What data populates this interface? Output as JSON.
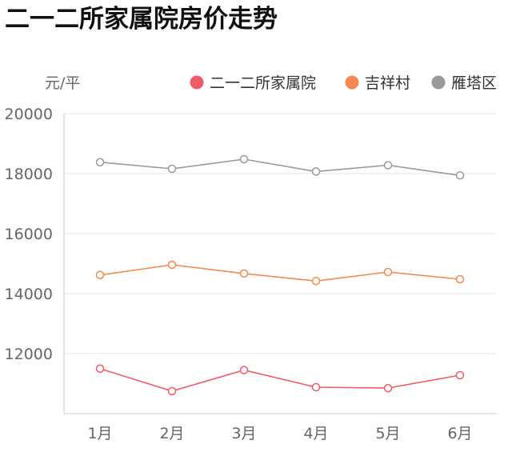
{
  "title": "二一二所家属院房价走势",
  "unit_label": "元/平",
  "colors": {
    "series": [
      "#f05a69",
      "#f5884f",
      "#999999"
    ],
    "grid": "#e6e6e6",
    "axis": "#cccccc",
    "marker_fill": "#ffffff"
  },
  "chart_data": {
    "type": "line",
    "title": "二一二所家属院房价走势",
    "xlabel": "",
    "ylabel": "元/平",
    "categories": [
      "1月",
      "2月",
      "3月",
      "4月",
      "5月",
      "6月"
    ],
    "ylim": [
      10000,
      20000
    ],
    "yticks": [
      12000,
      14000,
      16000,
      18000,
      20000
    ],
    "grid": true,
    "legend_position": "top-right",
    "series": [
      {
        "name": "二一二所家属院",
        "values": [
          11500,
          10750,
          11450,
          10880,
          10850,
          11280
        ]
      },
      {
        "name": "吉祥村",
        "values": [
          14620,
          14960,
          14670,
          14420,
          14720,
          14480
        ]
      },
      {
        "name": "雁塔区",
        "values": [
          18380,
          18160,
          18480,
          18070,
          18280,
          17940
        ]
      }
    ]
  }
}
